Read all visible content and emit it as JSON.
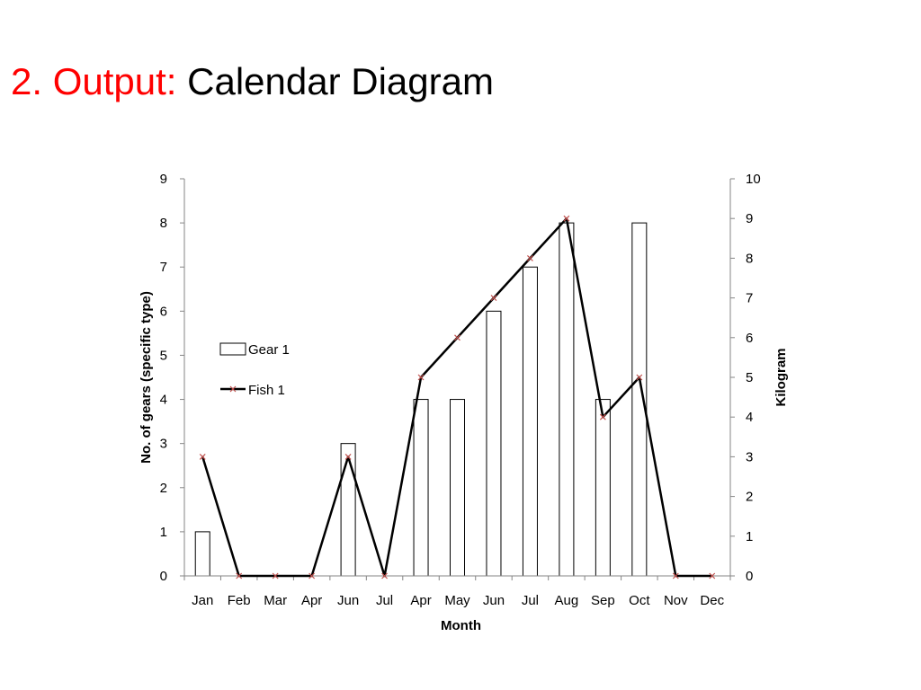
{
  "slide": {
    "title_prefix": "2. Output:",
    "title_main": "Calendar Diagram",
    "title_prefix_color": "#ff0000"
  },
  "chart_data": {
    "type": "bar+line",
    "categories": [
      "Jan",
      "Feb",
      "Mar",
      "Apr",
      "Jun",
      "Jul",
      "Apr",
      "May",
      "Jun",
      "Jul",
      "Aug",
      "Sep",
      "Oct",
      "Nov",
      "Dec"
    ],
    "series": [
      {
        "name": "Gear 1",
        "type": "bar",
        "axis": "left",
        "values": [
          1,
          0,
          0,
          0,
          3,
          0,
          4,
          4,
          6,
          7,
          8,
          4,
          8,
          0,
          0
        ],
        "fill": "#ffffff",
        "stroke": "#000000"
      },
      {
        "name": "Fish 1",
        "type": "line",
        "axis": "right",
        "values": [
          3,
          0,
          0,
          0,
          3,
          0,
          5,
          6,
          7,
          8,
          9,
          4,
          5,
          0,
          0
        ],
        "color": "#000000",
        "marker": "x",
        "marker_color": "#c0504d"
      }
    ],
    "xlabel": "Month",
    "ylabel": "No. of gears (specific type)",
    "y2label": "Kilogram",
    "ylim": [
      0,
      9
    ],
    "y2lim": [
      0,
      10
    ],
    "yticks": [
      0,
      1,
      2,
      3,
      4,
      5,
      6,
      7,
      8,
      9
    ],
    "y2ticks": [
      0,
      1,
      2,
      3,
      4,
      5,
      6,
      7,
      8,
      9,
      10
    ],
    "grid": false,
    "legend_position": "left-inside"
  }
}
